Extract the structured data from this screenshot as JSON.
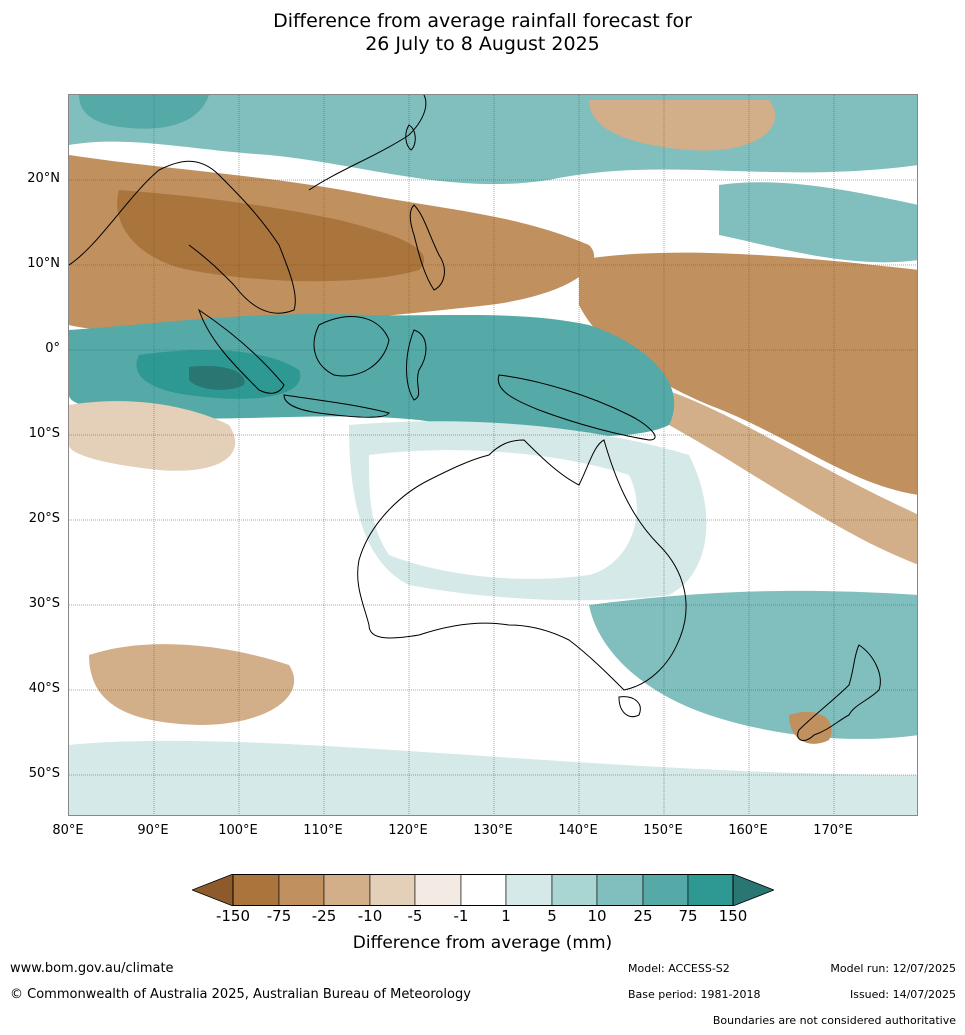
{
  "title": {
    "line1": "Difference from average rainfall forecast for",
    "line2": "26 July to 8 August 2025"
  },
  "axes": {
    "lat_labels": [
      "20°N",
      "10°N",
      "0°",
      "10°S",
      "20°S",
      "30°S",
      "40°S",
      "50°S"
    ],
    "lon_labels": [
      "80°E",
      "90°E",
      "100°E",
      "110°E",
      "120°E",
      "130°E",
      "140°E",
      "150°E",
      "160°E",
      "170°E"
    ]
  },
  "legend": {
    "title": "Difference from average (mm)",
    "ticks": [
      "-150",
      "-75",
      "-25",
      "-10",
      "-5",
      "-1",
      "1",
      "5",
      "10",
      "25",
      "75",
      "150"
    ],
    "colors": [
      "#8c5a2b",
      "#aa743d",
      "#c0915f",
      "#d2ae89",
      "#e4cfb9",
      "#f3ebe3",
      "#ffffff",
      "#d4e9e8",
      "#a9d5d3",
      "#80bfbd",
      "#55a9a6",
      "#2e9893",
      "#2a7672"
    ]
  },
  "footer": {
    "website": "www.bom.gov.au/climate",
    "copyright": "© Commonwealth of Australia 2025, Australian Bureau of Meteorology",
    "model": "Model: ACCESS-S2",
    "base_period": "Base period: 1981-2018",
    "model_run": "Model run: 12/07/2025",
    "issued": "Issued: 14/07/2025",
    "boundaries_note": "Boundaries are not considered authoritative"
  }
}
